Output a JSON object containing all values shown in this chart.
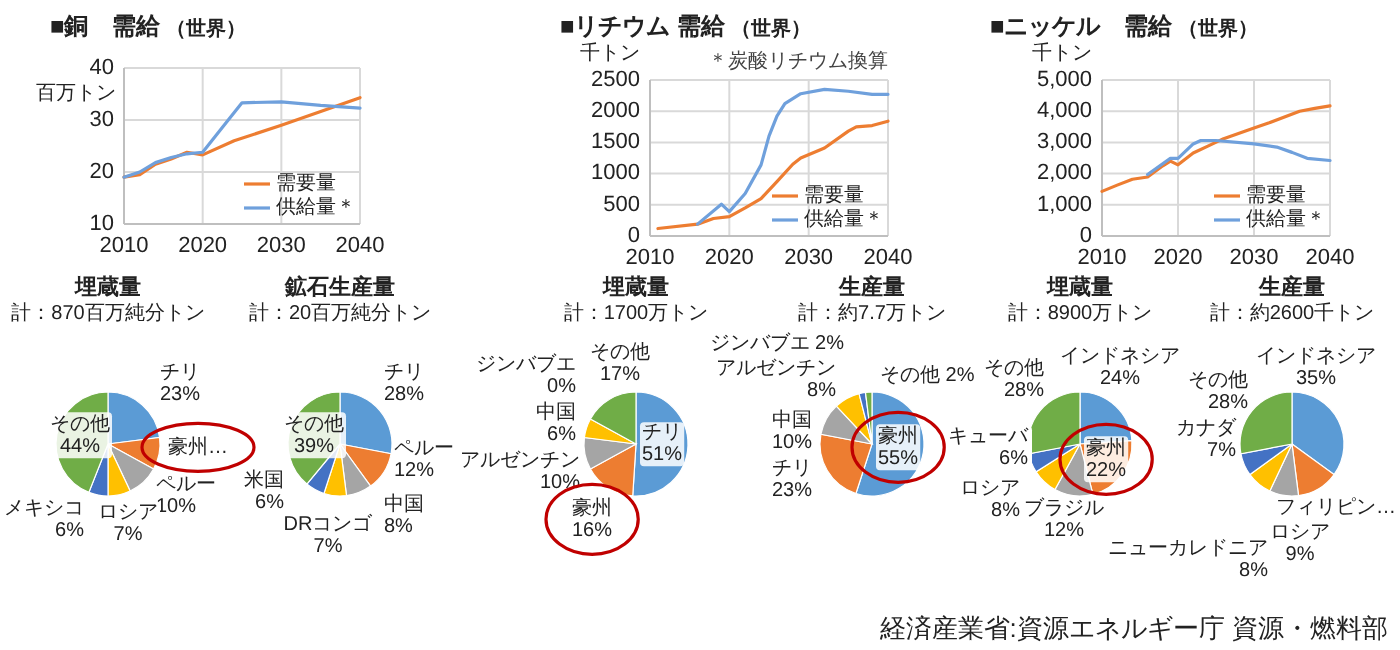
{
  "chart_data": [
    {
      "type": "line",
      "title": "■銅　需給",
      "subtitle": "（世界）",
      "ylabel": "百万トン",
      "xlim": [
        2010,
        2040
      ],
      "xticks": [
        2010,
        2020,
        2030,
        2040
      ],
      "ylim": [
        10,
        40
      ],
      "yticks": [
        10,
        20,
        30,
        40
      ],
      "grid": true,
      "legend": "bottom right",
      "series": [
        {
          "name": "需要量",
          "color": "#ed7d31",
          "x": [
            2010,
            2012,
            2014,
            2016,
            2018,
            2020,
            2024,
            2030,
            2040
          ],
          "values": [
            19,
            19.5,
            21.5,
            22.5,
            23.8,
            23.3,
            26,
            29,
            34.3
          ]
        },
        {
          "name": "供給量＊",
          "color": "#6fa0dc",
          "x": [
            2010,
            2012,
            2014,
            2016,
            2018,
            2020,
            2023,
            2025,
            2030,
            2035,
            2040
          ],
          "values": [
            19,
            20,
            21.8,
            22.8,
            23.5,
            23.8,
            29.5,
            33.3,
            33.5,
            32.8,
            32.3
          ]
        }
      ]
    },
    {
      "type": "line",
      "title": "■リチウム 需給",
      "subtitle": "（世界）",
      "ylabel": "千トン",
      "annotations": [
        "＊炭酸リチウム換算"
      ],
      "xlim": [
        2010,
        2040
      ],
      "xticks": [
        2010,
        2020,
        2030,
        2040
      ],
      "ylim": [
        0,
        2500
      ],
      "yticks": [
        0,
        500,
        1000,
        1500,
        2000,
        2500
      ],
      "grid": true,
      "legend": "bottom right",
      "series": [
        {
          "name": "需要量",
          "color": "#ed7d31",
          "x": [
            2011,
            2016,
            2018,
            2020,
            2022,
            2024,
            2026,
            2028,
            2029,
            2032,
            2035,
            2036,
            2038,
            2040
          ],
          "values": [
            120,
            190,
            280,
            310,
            450,
            600,
            870,
            1150,
            1250,
            1410,
            1680,
            1750,
            1770,
            1840
          ]
        },
        {
          "name": "供給量＊",
          "color": "#6fa0dc",
          "x": [
            2016,
            2019,
            2020,
            2022,
            2024,
            2025,
            2026,
            2027,
            2029,
            2032,
            2035,
            2038,
            2040
          ],
          "values": [
            190,
            510,
            390,
            680,
            1140,
            1600,
            1920,
            2120,
            2280,
            2350,
            2320,
            2270,
            2270
          ]
        }
      ]
    },
    {
      "type": "line",
      "title": "■ニッケル　需給",
      "subtitle": "（世界）",
      "ylabel": "千トン",
      "xlim": [
        2010,
        2040
      ],
      "xticks": [
        2010,
        2020,
        2030,
        2040
      ],
      "ylim": [
        0,
        5000
      ],
      "yticks": [
        0,
        {
          "value": 1000,
          "label": "1,000"
        },
        {
          "value": 2000,
          "label": "2,000"
        },
        {
          "value": 3000,
          "label": "3,000"
        },
        {
          "value": 4000,
          "label": "4,000"
        },
        {
          "value": 5000,
          "label": "5,000"
        }
      ],
      "grid": true,
      "legend": "bottom right",
      "series": [
        {
          "name": "需要量",
          "color": "#ed7d31",
          "x": [
            2010,
            2012,
            2014,
            2016,
            2018,
            2019,
            2020,
            2022,
            2024,
            2026,
            2030,
            2032,
            2036,
            2038,
            2040
          ],
          "values": [
            1430,
            1630,
            1820,
            1890,
            2250,
            2400,
            2280,
            2660,
            2890,
            3120,
            3460,
            3630,
            4000,
            4090,
            4170
          ]
        },
        {
          "name": "供給量＊",
          "color": "#6fa0dc",
          "x": [
            2016,
            2019,
            2020,
            2022,
            2023,
            2025,
            2030,
            2033,
            2035,
            2037,
            2040
          ],
          "values": [
            1970,
            2490,
            2490,
            2950,
            3060,
            3060,
            2950,
            2850,
            2680,
            2490,
            2420
          ]
        }
      ]
    },
    {
      "type": "pie",
      "title": "埋蔵量",
      "subtitle": "計：870百万純分トン",
      "categories": [
        "チリ",
        "豪州…",
        "ペルー",
        "ロシア",
        "メキシコ",
        "その他"
      ],
      "values": [
        23,
        10,
        10,
        7,
        6,
        44
      ],
      "value_labels": [
        "23%",
        null,
        "10%",
        "7%",
        "6%",
        "44%"
      ],
      "colors": [
        "#5b9bd5",
        "#ed7d31",
        "#a5a5a5",
        "#ffc000",
        "#4472c4",
        "#70ad47"
      ]
    },
    {
      "type": "pie",
      "title": "鉱石生産量",
      "subtitle": "計：20百万純分トン",
      "categories": [
        "チリ",
        "ペルー",
        "中国",
        "DRコンゴ",
        "米国",
        "その他"
      ],
      "values": [
        28,
        12,
        8,
        7,
        6,
        39
      ],
      "value_labels": [
        "28%",
        "12%",
        "8%",
        "7%",
        "6%",
        "39%"
      ],
      "colors": [
        "#5b9bd5",
        "#ed7d31",
        "#a5a5a5",
        "#ffc000",
        "#4472c4",
        "#70ad47"
      ]
    },
    {
      "type": "pie",
      "title": "埋蔵量",
      "subtitle": "計：1700万トン",
      "categories": [
        "チリ",
        "豪州",
        "アルゼンチン",
        "中国",
        "ジンバブエ",
        "その他"
      ],
      "values": [
        51,
        16,
        10,
        6,
        0,
        17
      ],
      "value_labels": [
        "51%",
        "16%",
        "10%",
        "6%",
        "0%",
        "17%"
      ],
      "colors": [
        "#5b9bd5",
        "#ed7d31",
        "#a5a5a5",
        "#ffc000",
        "#4472c4",
        "#70ad47"
      ]
    },
    {
      "type": "pie",
      "title": "生産量",
      "subtitle": "計：約7.7万トン",
      "categories": [
        "豪州",
        "チリ",
        "中国",
        "アルゼンチン",
        "ジンバブエ",
        "その他"
      ],
      "values": [
        55,
        23,
        10,
        8,
        2,
        2
      ],
      "value_labels": [
        "55%",
        "23%",
        "10%",
        "8%",
        "2%",
        "2%"
      ],
      "colors": [
        "#5b9bd5",
        "#ed7d31",
        "#a5a5a5",
        "#ffc000",
        "#4472c4",
        "#70ad47"
      ]
    },
    {
      "type": "pie",
      "title": "埋蔵量",
      "subtitle": "計：8900万トン",
      "categories": [
        "インドネシア",
        "豪州",
        "ブラジル",
        "ロシア",
        "キューバ",
        "その他"
      ],
      "values": [
        24,
        22,
        12,
        8,
        6,
        28
      ],
      "value_labels": [
        "24%",
        "22%",
        "12%",
        "8%",
        "6%",
        "28%"
      ],
      "colors": [
        "#5b9bd5",
        "#ed7d31",
        "#a5a5a5",
        "#ffc000",
        "#4472c4",
        "#70ad47"
      ]
    },
    {
      "type": "pie",
      "title": "生産量",
      "subtitle": "計：約2600千トン",
      "categories": [
        "インドネシア",
        "フィリピン…",
        "ロシア",
        "ニューカレドニア",
        "カナダ",
        "その他"
      ],
      "values": [
        35,
        13,
        9,
        8,
        7,
        28
      ],
      "value_labels": [
        "35%",
        null,
        "9%",
        "8%",
        "7%",
        "28%"
      ],
      "colors": [
        "#5b9bd5",
        "#ed7d31",
        "#a5a5a5",
        "#ffc000",
        "#4472c4",
        "#70ad47"
      ],
      "annotations": [
        "経済産業省:資源エネルギー庁 資源・燃料部"
      ]
    }
  ]
}
